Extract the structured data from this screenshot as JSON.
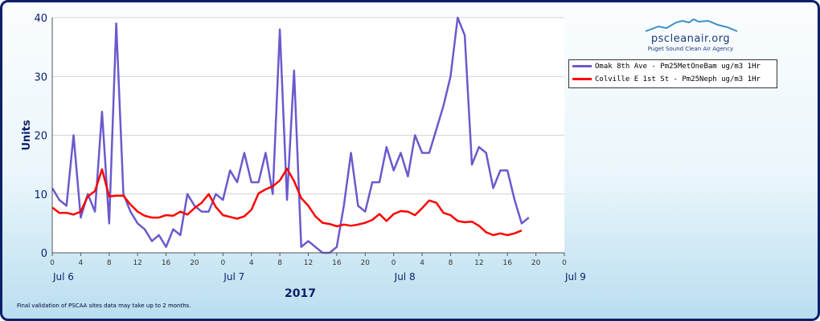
{
  "logo": {
    "main_text": "pscleanair.org",
    "sub_text": "Puget Sound Clean Air Agency"
  },
  "footer_note": "Final validation of PSCAA sites data may take up to 2 months.",
  "colors": {
    "series_1": "#6a5acd",
    "series_2": "#ff0000",
    "axis_text": "#0b1f6b",
    "frame": "#0b1f6b"
  },
  "chart_data": {
    "type": "line",
    "ylabel": "Units",
    "xlabel": "2017",
    "ylim": [
      0,
      40
    ],
    "yticks": [
      0,
      10,
      20,
      30,
      40
    ],
    "xlim": [
      0,
      72
    ],
    "hour_ticks": [
      {
        "x": 0,
        "label": "0"
      },
      {
        "x": 4,
        "label": "4"
      },
      {
        "x": 8,
        "label": "8"
      },
      {
        "x": 12,
        "label": "12"
      },
      {
        "x": 16,
        "label": "16"
      },
      {
        "x": 20,
        "label": "20"
      },
      {
        "x": 24,
        "label": "0"
      },
      {
        "x": 28,
        "label": "4"
      },
      {
        "x": 32,
        "label": "8"
      },
      {
        "x": 36,
        "label": "12"
      },
      {
        "x": 40,
        "label": "16"
      },
      {
        "x": 44,
        "label": "20"
      },
      {
        "x": 48,
        "label": "0"
      },
      {
        "x": 52,
        "label": "4"
      },
      {
        "x": 56,
        "label": "8"
      },
      {
        "x": 60,
        "label": "12"
      },
      {
        "x": 64,
        "label": "16"
      },
      {
        "x": 68,
        "label": "20"
      },
      {
        "x": 72,
        "label": "0"
      }
    ],
    "day_labels": [
      {
        "x": 0,
        "label": "Jul 6"
      },
      {
        "x": 24,
        "label": "Jul 7"
      },
      {
        "x": 48,
        "label": "Jul 8"
      },
      {
        "x": 72,
        "label": "Jul 9"
      }
    ],
    "grid": true,
    "legend_position": "right",
    "series": [
      {
        "name": "Omak 8th Ave - Pm25MetOneBam  ug/m3  1Hr",
        "color": "#6a5acd",
        "values": [
          11,
          9,
          8,
          20,
          6,
          10,
          7,
          24,
          5,
          39,
          10,
          7,
          5,
          4,
          2,
          3,
          1,
          4,
          3,
          10,
          8,
          7,
          7,
          10,
          9,
          14,
          12,
          17,
          12,
          12,
          17,
          10,
          38,
          9,
          31,
          1,
          2,
          1,
          0,
          0,
          1,
          8,
          17,
          8,
          7,
          12,
          12,
          18,
          14,
          17,
          13,
          20,
          17,
          17,
          21,
          25,
          30,
          40,
          37,
          15,
          18,
          17,
          11,
          14,
          14,
          9,
          5,
          6
        ]
      },
      {
        "name": "Colville E 1st St - Pm25Neph  ug/m3  1Hr",
        "color": "#ff0000",
        "values": [
          7.7,
          6.8,
          6.8,
          6.5,
          7,
          9.6,
          10.5,
          14.2,
          9.6,
          9.7,
          9.7,
          8.2,
          7,
          6.3,
          6,
          6,
          6.4,
          6.3,
          7,
          6.5,
          7.6,
          8.5,
          10,
          7.8,
          6.4,
          6.1,
          5.8,
          6.2,
          7.3,
          10.1,
          10.8,
          11.3,
          12.3,
          14.3,
          12.2,
          9.3,
          8,
          6.2,
          5.1,
          4.9,
          4.5,
          4.8,
          4.6,
          4.8,
          5.1,
          5.6,
          6.6,
          5.4,
          6.6,
          7.1,
          7,
          6.4,
          7.6,
          8.9,
          8.5,
          6.8,
          6.4,
          5.4,
          5.2,
          5.3,
          4.6,
          3.5,
          3,
          3.3,
          3,
          3.3,
          3.8
        ]
      }
    ]
  }
}
